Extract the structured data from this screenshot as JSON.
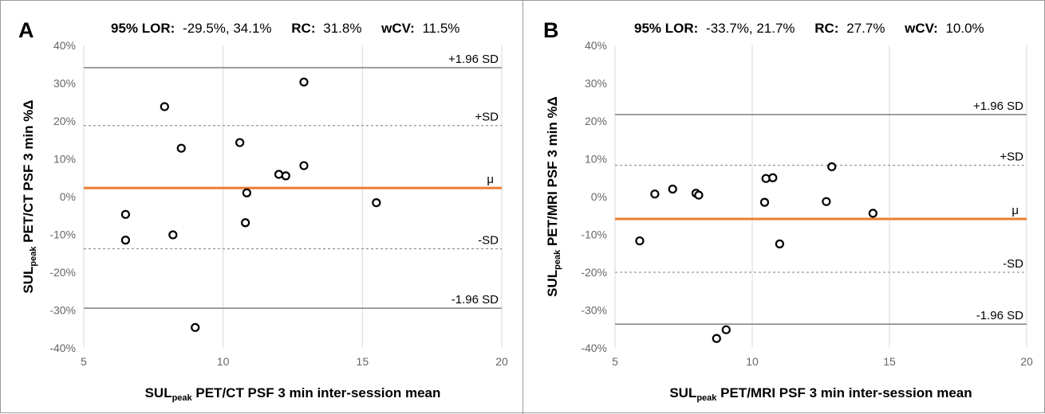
{
  "figure": {
    "panels": [
      {
        "letter": "A",
        "stats": {
          "lor_label": "95% LOR:",
          "lor_value": "-29.5%, 34.1%",
          "rc_label": "RC:",
          "rc_value": "31.8%",
          "wcv_label": "wCV:",
          "wcv_value": "11.5%"
        }
      },
      {
        "letter": "B",
        "stats": {
          "lor_label": "95% LOR:",
          "lor_value": "-33.7%, 21.7%",
          "rc_label": "RC:",
          "rc_value": "27.7%",
          "wcv_label": "wCV:",
          "wcv_value": "10.0%"
        }
      }
    ]
  },
  "chart_data": [
    {
      "type": "scatter",
      "ylabel": "SULpeak PET/CT PSF 3 min %Δ",
      "ylabel_parts": {
        "main": "SUL",
        "sub": "peak",
        "rest": " PET/CT PSF 3 min %Δ"
      },
      "xlabel": "SULpeak PET/CT PSF 3 min inter-session mean",
      "xlabel_parts": {
        "main": "SUL",
        "sub": "peak",
        "rest": " PET/CT PSF 3 min inter-session mean"
      },
      "xlim": [
        5,
        20
      ],
      "ylim": [
        -40,
        40
      ],
      "x_ticks": [
        "5",
        "10",
        "15",
        "20"
      ],
      "y_ticks": [
        "-40%",
        "-30%",
        "-20%",
        "-10%",
        "0%",
        "10%",
        "20%",
        "30%",
        "40%"
      ],
      "grid": "vertical",
      "points": [
        {
          "x": 6.5,
          "y": -4.7
        },
        {
          "x": 6.5,
          "y": -11.5
        },
        {
          "x": 7.9,
          "y": 23.8
        },
        {
          "x": 8.2,
          "y": -10.1
        },
        {
          "x": 8.5,
          "y": 12.8
        },
        {
          "x": 9.0,
          "y": -34.6
        },
        {
          "x": 10.6,
          "y": 14.3
        },
        {
          "x": 10.8,
          "y": -6.9
        },
        {
          "x": 10.85,
          "y": 1.0
        },
        {
          "x": 12.0,
          "y": 5.9
        },
        {
          "x": 12.25,
          "y": 5.5
        },
        {
          "x": 12.9,
          "y": 8.2
        },
        {
          "x": 12.9,
          "y": 30.3
        },
        {
          "x": 15.5,
          "y": -1.6
        }
      ],
      "reference_lines": [
        {
          "label": "+1.96 SD",
          "y": 34.1,
          "style": "solid",
          "color": "#7f7f7f"
        },
        {
          "label": "+SD",
          "y": 18.8,
          "style": "dashed",
          "color": "#7f7f7f"
        },
        {
          "label": "μ",
          "y": 2.3,
          "style": "solid",
          "color": "#ed7d31"
        },
        {
          "label": "-SD",
          "y": -13.8,
          "style": "dashed",
          "color": "#7f7f7f"
        },
        {
          "label": "-1.96 SD",
          "y": -29.5,
          "style": "solid",
          "color": "#7f7f7f"
        }
      ]
    },
    {
      "type": "scatter",
      "ylabel": "SULpeak PET/MRI PSF 3 min %Δ",
      "ylabel_parts": {
        "main": "SUL",
        "sub": "peak",
        "rest": " PET/MRI PSF 3 min %Δ"
      },
      "xlabel": "SULpeak PET/MRI PSF 3 min inter-session mean",
      "xlabel_parts": {
        "main": "SUL",
        "sub": "peak",
        "rest": " PET/MRI PSF 3 min inter-session mean"
      },
      "xlim": [
        5,
        20
      ],
      "ylim": [
        -40,
        40
      ],
      "x_ticks": [
        "5",
        "10",
        "15",
        "20"
      ],
      "y_ticks": [
        "-40%",
        "-30%",
        "-20%",
        "-10%",
        "0%",
        "10%",
        "20%",
        "30%",
        "40%"
      ],
      "grid": "vertical",
      "points": [
        {
          "x": 5.9,
          "y": -11.7
        },
        {
          "x": 6.45,
          "y": 0.7
        },
        {
          "x": 7.1,
          "y": 2.0
        },
        {
          "x": 7.95,
          "y": 0.9
        },
        {
          "x": 8.05,
          "y": 0.4
        },
        {
          "x": 8.7,
          "y": -37.5
        },
        {
          "x": 9.05,
          "y": -35.2
        },
        {
          "x": 10.45,
          "y": -1.5
        },
        {
          "x": 10.5,
          "y": 4.8
        },
        {
          "x": 10.75,
          "y": 5.0
        },
        {
          "x": 11.0,
          "y": -12.5
        },
        {
          "x": 12.7,
          "y": -1.3
        },
        {
          "x": 12.9,
          "y": 7.9
        },
        {
          "x": 14.4,
          "y": -4.4
        }
      ],
      "reference_lines": [
        {
          "label": "+1.96 SD",
          "y": 21.7,
          "style": "solid",
          "color": "#7f7f7f"
        },
        {
          "label": "+SD",
          "y": 8.3,
          "style": "dashed",
          "color": "#7f7f7f"
        },
        {
          "label": "μ",
          "y": -5.9,
          "style": "solid",
          "color": "#ed7d31"
        },
        {
          "label": "-SD",
          "y": -20.0,
          "style": "dashed",
          "color": "#7f7f7f"
        },
        {
          "label": "-1.96 SD",
          "y": -33.7,
          "style": "solid",
          "color": "#7f7f7f"
        }
      ]
    }
  ]
}
